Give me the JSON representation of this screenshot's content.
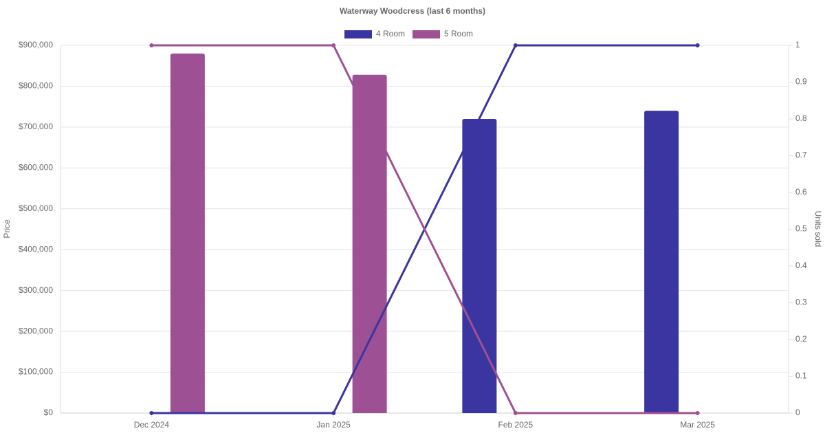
{
  "chart_data": {
    "type": "bar-line",
    "title": "Waterway Woodcress (last 6 months)",
    "categories": [
      "Dec 2024",
      "Jan 2025",
      "Feb 2025",
      "Mar 2025"
    ],
    "y_label": "Price",
    "y2_label": "Units sold",
    "series": [
      {
        "name": "4 Room",
        "color": "#3a35a0",
        "values": [
          null,
          null,
          720000,
          740000
        ],
        "units_sold": [
          0,
          0,
          1,
          1
        ]
      },
      {
        "name": "5 Room",
        "color": "#9e5094",
        "values": [
          880000,
          828000,
          null,
          null
        ],
        "units_sold": [
          1,
          1,
          0,
          0
        ]
      }
    ],
    "ylim": [
      0,
      900000
    ],
    "yticks": [
      {
        "value": 0,
        "label": "$0"
      },
      {
        "value": 100000,
        "label": "$100,000"
      },
      {
        "value": 200000,
        "label": "$200,000"
      },
      {
        "value": 300000,
        "label": "$300,000"
      },
      {
        "value": 400000,
        "label": "$400,000"
      },
      {
        "value": 500000,
        "label": "$500,000"
      },
      {
        "value": 600000,
        "label": "$600,000"
      },
      {
        "value": 700000,
        "label": "$700,000"
      },
      {
        "value": 800000,
        "label": "$800,000"
      },
      {
        "value": 900000,
        "label": "$900,000"
      }
    ],
    "y2lim": [
      0,
      1
    ],
    "y2ticks": [
      0,
      0.1,
      0.2,
      0.3,
      0.4,
      0.5,
      0.6,
      0.7,
      0.8,
      0.9,
      1
    ],
    "grid": true,
    "legend": "top"
  }
}
